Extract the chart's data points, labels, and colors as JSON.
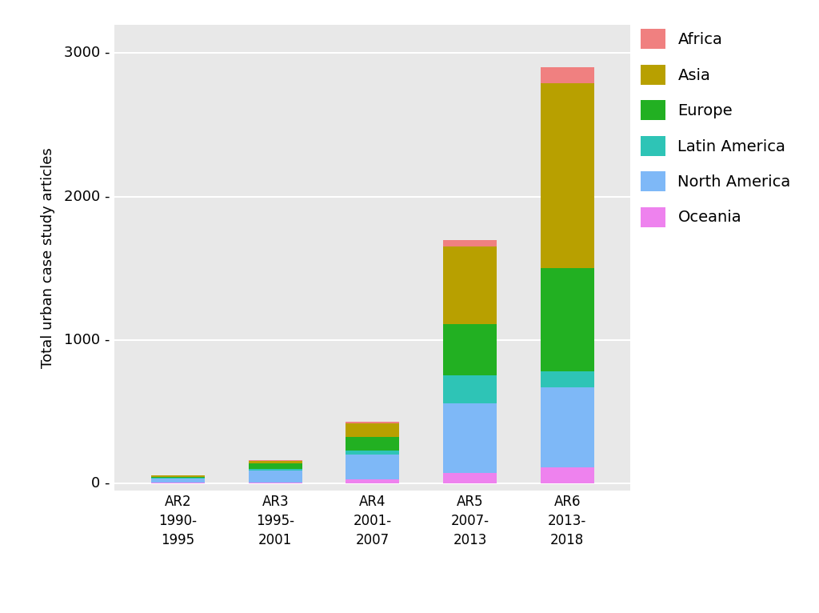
{
  "categories": [
    "AR2\n1990-\n1995",
    "AR3\n1995-\n2001",
    "AR4\n2001-\n2007",
    "AR5\n2007-\n2013",
    "AR6\n2013-\n2018"
  ],
  "regions": [
    "Oceania",
    "North America",
    "Latin America",
    "Europe",
    "Asia",
    "Africa"
  ],
  "colors": {
    "Africa": "#F08080",
    "Asia": "#B8A000",
    "Europe": "#22B022",
    "Latin America": "#2EC4B6",
    "North America": "#7EB8F7",
    "Oceania": "#EE82EE"
  },
  "data": {
    "Oceania": [
      2,
      5,
      25,
      70,
      110
    ],
    "North America": [
      30,
      85,
      175,
      490,
      560
    ],
    "Latin America": [
      4,
      12,
      28,
      190,
      110
    ],
    "Europe": [
      10,
      38,
      95,
      360,
      720
    ],
    "Asia": [
      8,
      18,
      95,
      540,
      1290
    ],
    "Africa": [
      3,
      5,
      10,
      45,
      110
    ]
  },
  "ylabel": "Total urban case study articles",
  "ylim": [
    -50,
    3200
  ],
  "yticks": [
    0,
    1000,
    2000,
    3000
  ],
  "ytick_labels": [
    "0",
    "1000",
    "2000",
    "3000"
  ],
  "background_color": "#E8E8E8",
  "figure_background": "#FFFFFF",
  "bar_width": 0.55,
  "legend_order": [
    "Africa",
    "Asia",
    "Europe",
    "Latin America",
    "North America",
    "Oceania"
  ]
}
